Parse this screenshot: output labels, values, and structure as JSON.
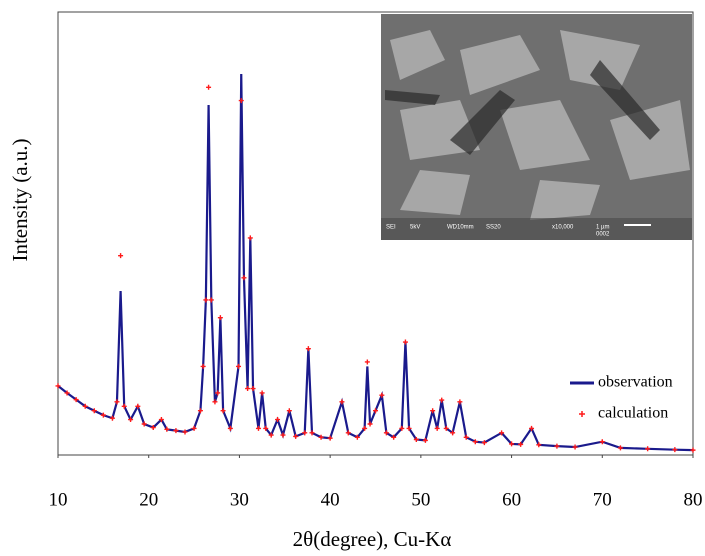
{
  "chart_data": {
    "type": "line",
    "x_label": "2θ(degree), Cu-Kα",
    "y_label": "Intensity (a.u.)",
    "xlim": [
      10,
      80
    ],
    "xticks": [
      10,
      20,
      30,
      40,
      50,
      60,
      70,
      80
    ],
    "ylim": [
      0,
      100
    ],
    "legend": "lower-right",
    "x": [
      10,
      11,
      12,
      13,
      14,
      15,
      16,
      16.5,
      16.9,
      17.3,
      18,
      18.8,
      19.5,
      20.5,
      21.4,
      22,
      23,
      24,
      25,
      25.7,
      26.0,
      26.3,
      26.6,
      26.9,
      27.3,
      27.6,
      27.9,
      28.2,
      29,
      29.9,
      30.2,
      30.5,
      30.9,
      31.2,
      31.5,
      32.1,
      32.5,
      32.9,
      33.5,
      34.2,
      34.8,
      35.5,
      36.2,
      37.2,
      37.6,
      38,
      39,
      40,
      41.3,
      42,
      43,
      43.8,
      44.1,
      44.4,
      45,
      45.7,
      46.2,
      47,
      47.9,
      48.3,
      48.7,
      49.5,
      50.5,
      51.3,
      51.8,
      52.3,
      52.8,
      53.5,
      54.3,
      55,
      56,
      57,
      58.9,
      60,
      61,
      62.2,
      63,
      65,
      67,
      70,
      72,
      75,
      78,
      80
    ],
    "series": [
      {
        "name": "observation",
        "color": "#1a1a8c",
        "style": "line",
        "values": [
          15.6,
          14,
          12.5,
          11,
          10,
          9,
          8.3,
          12,
          37,
          11,
          8,
          11,
          7,
          6.2,
          8,
          5.8,
          5.5,
          5.2,
          6,
          10,
          20,
          35,
          79,
          35,
          12,
          14,
          31,
          10,
          6,
          20,
          86,
          40,
          15,
          49,
          15,
          6,
          14,
          6,
          4.5,
          8,
          4.5,
          10,
          4.2,
          5,
          24,
          5,
          4,
          3.8,
          12,
          5,
          4,
          6,
          20,
          7,
          10,
          13.5,
          5,
          4,
          6,
          25.5,
          6,
          3.5,
          3.3,
          10,
          6,
          12.4,
          6,
          5,
          12,
          4,
          3,
          2.8,
          5,
          2.5,
          2.4,
          6,
          2.3,
          2,
          1.8,
          3,
          1.6,
          1.4,
          1.2,
          1.1
        ]
      },
      {
        "name": "calculation",
        "color": "#ff1a1a",
        "style": "markers",
        "values": [
          15.6,
          14,
          12.5,
          11,
          10,
          9,
          8.3,
          12,
          45,
          11,
          8,
          11,
          7,
          6.2,
          8,
          5.8,
          5.5,
          5.2,
          6,
          10,
          20,
          35,
          83,
          35,
          12,
          14,
          31,
          10,
          6,
          20,
          80,
          40,
          15,
          49,
          15,
          6,
          14,
          6,
          4.5,
          8,
          4.5,
          10,
          4.2,
          5,
          24,
          5,
          4,
          3.8,
          12,
          5,
          4,
          6,
          21,
          7,
          10,
          13.5,
          5,
          4,
          6,
          25.5,
          6,
          3.5,
          3.3,
          10,
          6,
          12.4,
          6,
          5,
          12,
          4,
          3,
          2.8,
          5,
          2.5,
          2.4,
          6,
          2.3,
          2,
          1.8,
          3,
          1.6,
          1.4,
          1.2,
          1.1
        ]
      }
    ]
  },
  "inset": {
    "labels": [
      "SEI",
      "5kV",
      "WD10mm",
      "SS20",
      "x10,000",
      "1 µm",
      "0002"
    ]
  }
}
